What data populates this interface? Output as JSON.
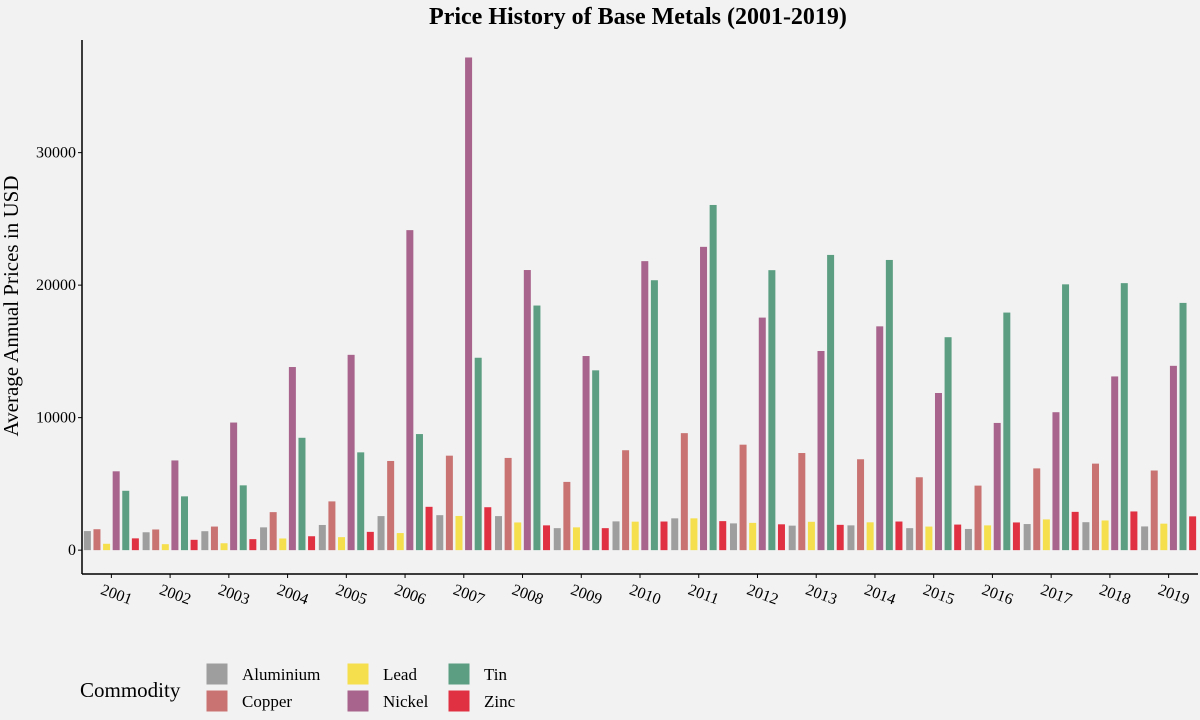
{
  "chart_data": {
    "type": "bar",
    "title": "Price History of Base Metals (2001-2019)",
    "xlabel": "",
    "ylabel": "Average Annual Prices in USD",
    "ylim": [
      -1800,
      38500
    ],
    "yticks": [
      "0",
      "10000",
      "20000",
      "30000"
    ],
    "ytick_values": [
      0,
      10000,
      20000,
      30000
    ],
    "grid": false,
    "legend": {
      "title": "Commodity",
      "position": "bottom-left"
    },
    "categories": [
      "2001",
      "2002",
      "2003",
      "2004",
      "2005",
      "2006",
      "2007",
      "2008",
      "2009",
      "2010",
      "2011",
      "2012",
      "2013",
      "2014",
      "2015",
      "2016",
      "2017",
      "2018",
      "2019"
    ],
    "series": [
      {
        "name": "Aluminium",
        "color": "#9e9e9e",
        "values": [
          1440,
          1350,
          1430,
          1720,
          1900,
          2570,
          2640,
          2570,
          1660,
          2170,
          2400,
          2020,
          1850,
          1870,
          1660,
          1600,
          1970,
          2110,
          1790
        ]
      },
      {
        "name": "Copper",
        "color": "#c97472",
        "values": [
          1580,
          1560,
          1780,
          2870,
          3680,
          6730,
          7130,
          6960,
          5150,
          7540,
          8830,
          7960,
          7330,
          6860,
          5500,
          4870,
          6170,
          6530,
          6010
        ]
      },
      {
        "name": "Lead",
        "color": "#f5df4d",
        "values": [
          480,
          450,
          520,
          880,
          980,
          1290,
          2580,
          2090,
          1720,
          2150,
          2400,
          2060,
          2140,
          2100,
          1780,
          1870,
          2320,
          2240,
          2000
        ]
      },
      {
        "name": "Nickel",
        "color": "#a8648c",
        "values": [
          5950,
          6770,
          9630,
          13820,
          14740,
          24150,
          37180,
          21140,
          14650,
          21810,
          22890,
          17550,
          15030,
          16890,
          11860,
          9600,
          10410,
          13110,
          13910
        ]
      },
      {
        "name": "Tin",
        "color": "#5b9e82",
        "values": [
          4480,
          4060,
          4890,
          8480,
          7380,
          8760,
          14520,
          18460,
          13570,
          20370,
          26050,
          21130,
          22280,
          21900,
          16070,
          17930,
          20060,
          20150,
          18660
        ]
      },
      {
        "name": "Zinc",
        "color": "#e03142",
        "values": [
          890,
          780,
          830,
          1050,
          1380,
          3270,
          3240,
          1870,
          1660,
          2160,
          2190,
          1950,
          1910,
          2160,
          1930,
          2090,
          2890,
          2920,
          2550
        ]
      }
    ]
  }
}
